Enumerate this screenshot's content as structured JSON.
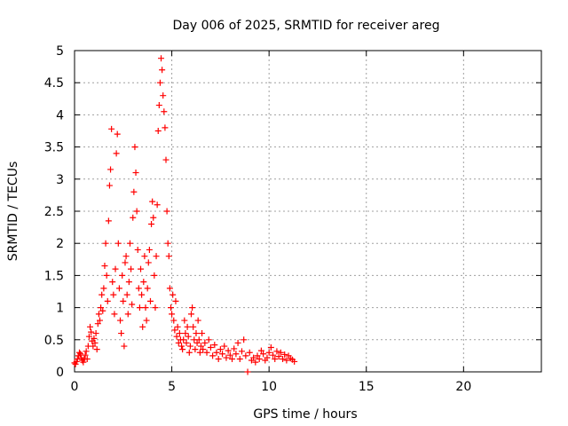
{
  "chart_data": {
    "type": "scatter",
    "title": "Day 006 of 2025, SRMTID for receiver areg",
    "xlabel": "GPS time / hours",
    "ylabel": "SRMTID / TECUs",
    "xlim": [
      0,
      24
    ],
    "ylim": [
      0,
      5
    ],
    "x_ticks": [
      "0",
      "5",
      "10",
      "15",
      "20"
    ],
    "y_ticks": [
      "0",
      "0.5",
      "1",
      "1.5",
      "2",
      "2.5",
      "3",
      "3.5",
      "4",
      "4.5",
      "5"
    ],
    "grid": true,
    "marker": "+",
    "color": "#ff0000",
    "series": [
      {
        "name": "SRMTID",
        "points": [
          [
            0.0,
            0.14
          ],
          [
            0.05,
            0.12
          ],
          [
            0.1,
            0.16
          ],
          [
            0.15,
            0.2
          ],
          [
            0.2,
            0.25
          ],
          [
            0.25,
            0.3
          ],
          [
            0.3,
            0.28
          ],
          [
            0.35,
            0.22
          ],
          [
            0.4,
            0.18
          ],
          [
            0.45,
            0.15
          ],
          [
            0.5,
            0.2
          ],
          [
            0.55,
            0.26
          ],
          [
            0.6,
            0.32
          ],
          [
            0.65,
            0.2
          ],
          [
            0.7,
            0.4
          ],
          [
            0.75,
            0.55
          ],
          [
            0.8,
            0.7
          ],
          [
            0.85,
            0.62
          ],
          [
            0.9,
            0.48
          ],
          [
            0.95,
            0.4
          ],
          [
            1.0,
            0.52
          ],
          [
            1.05,
            0.45
          ],
          [
            1.1,
            0.6
          ],
          [
            1.15,
            0.35
          ],
          [
            1.2,
            0.75
          ],
          [
            1.25,
            0.9
          ],
          [
            1.3,
            0.8
          ],
          [
            1.35,
            1.0
          ],
          [
            1.4,
            1.2
          ],
          [
            1.45,
            0.95
          ],
          [
            1.5,
            1.3
          ],
          [
            1.55,
            1.65
          ],
          [
            1.6,
            2.0
          ],
          [
            1.65,
            1.5
          ],
          [
            1.7,
            1.1
          ],
          [
            1.75,
            2.35
          ],
          [
            1.8,
            2.9
          ],
          [
            1.85,
            3.15
          ],
          [
            1.9,
            3.78
          ],
          [
            1.95,
            1.4
          ],
          [
            2.0,
            1.2
          ],
          [
            2.05,
            0.9
          ],
          [
            2.1,
            1.6
          ],
          [
            2.15,
            3.4
          ],
          [
            2.2,
            3.7
          ],
          [
            2.25,
            2.0
          ],
          [
            2.3,
            1.3
          ],
          [
            2.35,
            0.8
          ],
          [
            2.4,
            0.6
          ],
          [
            2.45,
            1.5
          ],
          [
            2.5,
            1.1
          ],
          [
            2.55,
            0.4
          ],
          [
            2.6,
            1.7
          ],
          [
            2.65,
            1.8
          ],
          [
            2.7,
            1.2
          ],
          [
            2.75,
            0.9
          ],
          [
            2.8,
            1.4
          ],
          [
            2.85,
            2.0
          ],
          [
            2.9,
            1.6
          ],
          [
            2.95,
            1.05
          ],
          [
            3.0,
            2.4
          ],
          [
            3.05,
            2.8
          ],
          [
            3.1,
            3.5
          ],
          [
            3.15,
            3.1
          ],
          [
            3.2,
            2.5
          ],
          [
            3.25,
            1.9
          ],
          [
            3.3,
            1.3
          ],
          [
            3.35,
            1.0
          ],
          [
            3.4,
            1.6
          ],
          [
            3.45,
            1.2
          ],
          [
            3.5,
            0.7
          ],
          [
            3.55,
            1.4
          ],
          [
            3.6,
            1.8
          ],
          [
            3.65,
            1.0
          ],
          [
            3.7,
            0.8
          ],
          [
            3.75,
            1.3
          ],
          [
            3.8,
            1.7
          ],
          [
            3.85,
            1.9
          ],
          [
            3.9,
            1.1
          ],
          [
            3.95,
            2.3
          ],
          [
            4.0,
            2.65
          ],
          [
            4.05,
            2.4
          ],
          [
            4.1,
            1.5
          ],
          [
            4.15,
            1.0
          ],
          [
            4.2,
            1.8
          ],
          [
            4.25,
            2.6
          ],
          [
            4.3,
            3.75
          ],
          [
            4.35,
            4.15
          ],
          [
            4.4,
            4.5
          ],
          [
            4.45,
            4.88
          ],
          [
            4.5,
            4.7
          ],
          [
            4.55,
            4.3
          ],
          [
            4.6,
            4.05
          ],
          [
            4.65,
            3.8
          ],
          [
            4.7,
            3.3
          ],
          [
            4.75,
            2.5
          ],
          [
            4.8,
            2.0
          ],
          [
            4.85,
            1.8
          ],
          [
            4.9,
            1.3
          ],
          [
            4.95,
            1.0
          ],
          [
            5.0,
            0.9
          ],
          [
            5.05,
            1.2
          ],
          [
            5.1,
            0.8
          ],
          [
            5.15,
            0.65
          ],
          [
            5.2,
            1.1
          ],
          [
            5.25,
            0.55
          ],
          [
            5.3,
            0.7
          ],
          [
            5.35,
            0.45
          ],
          [
            5.4,
            0.6
          ],
          [
            5.45,
            0.5
          ],
          [
            5.5,
            0.4
          ],
          [
            5.55,
            0.35
          ],
          [
            5.6,
            0.5
          ],
          [
            5.65,
            0.8
          ],
          [
            5.7,
            0.6
          ],
          [
            5.75,
            0.45
          ],
          [
            5.8,
            0.7
          ],
          [
            5.85,
            0.55
          ],
          [
            5.9,
            0.3
          ],
          [
            5.95,
            0.4
          ],
          [
            6.0,
            0.9
          ],
          [
            6.05,
            1.0
          ],
          [
            6.1,
            0.7
          ],
          [
            6.15,
            0.5
          ],
          [
            6.2,
            0.35
          ],
          [
            6.25,
            0.6
          ],
          [
            6.3,
            0.45
          ],
          [
            6.35,
            0.8
          ],
          [
            6.4,
            0.5
          ],
          [
            6.45,
            0.3
          ],
          [
            6.5,
            0.4
          ],
          [
            6.55,
            0.6
          ],
          [
            6.6,
            0.35
          ],
          [
            6.7,
            0.45
          ],
          [
            6.8,
            0.3
          ],
          [
            6.9,
            0.5
          ],
          [
            7.0,
            0.38
          ],
          [
            7.1,
            0.25
          ],
          [
            7.2,
            0.42
          ],
          [
            7.3,
            0.3
          ],
          [
            7.4,
            0.2
          ],
          [
            7.5,
            0.35
          ],
          [
            7.6,
            0.28
          ],
          [
            7.7,
            0.4
          ],
          [
            7.8,
            0.22
          ],
          [
            7.9,
            0.33
          ],
          [
            8.0,
            0.26
          ],
          [
            8.1,
            0.2
          ],
          [
            8.2,
            0.36
          ],
          [
            8.3,
            0.28
          ],
          [
            8.4,
            0.45
          ],
          [
            8.5,
            0.2
          ],
          [
            8.6,
            0.32
          ],
          [
            8.7,
            0.5
          ],
          [
            8.8,
            0.25
          ],
          [
            8.9,
            0.0
          ],
          [
            9.0,
            0.3
          ],
          [
            9.1,
            0.18
          ],
          [
            9.2,
            0.22
          ],
          [
            9.3,
            0.15
          ],
          [
            9.4,
            0.25
          ],
          [
            9.5,
            0.2
          ],
          [
            9.6,
            0.33
          ],
          [
            9.7,
            0.28
          ],
          [
            9.8,
            0.18
          ],
          [
            9.9,
            0.22
          ],
          [
            10.0,
            0.3
          ],
          [
            10.1,
            0.38
          ],
          [
            10.2,
            0.26
          ],
          [
            10.3,
            0.2
          ],
          [
            10.4,
            0.32
          ],
          [
            10.5,
            0.24
          ],
          [
            10.6,
            0.3
          ],
          [
            10.7,
            0.2
          ],
          [
            10.8,
            0.27
          ],
          [
            10.9,
            0.18
          ],
          [
            11.0,
            0.25
          ],
          [
            11.1,
            0.21
          ],
          [
            11.2,
            0.19
          ],
          [
            11.3,
            0.16
          ]
        ]
      }
    ]
  }
}
